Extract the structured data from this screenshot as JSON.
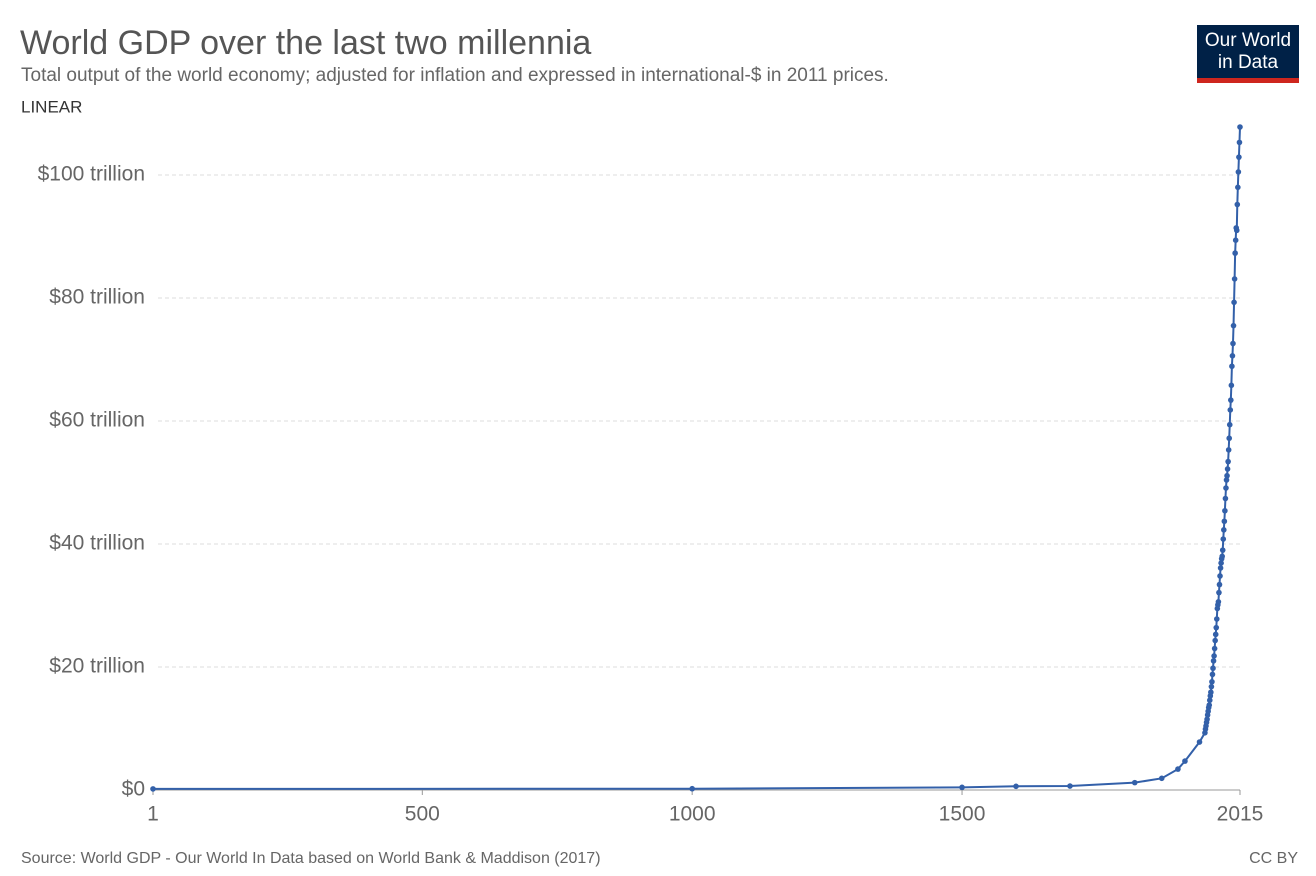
{
  "chart_data": {
    "type": "line",
    "title": "World GDP over the last two millennia",
    "subtitle": "Total output of the world economy; adjusted for inflation and expressed in international-$ in 2011 prices.",
    "scale_label": "LINEAR",
    "logo": [
      "Our World",
      "in Data"
    ],
    "source": "Source: World GDP - Our World In Data based on World Bank & Maddison (2017)",
    "license": "CC BY",
    "x": [
      1,
      1000,
      1500,
      1600,
      1700,
      1820,
      1870,
      1900,
      1913,
      1940,
      1950,
      1951,
      1952,
      1953,
      1954,
      1955,
      1956,
      1957,
      1958,
      1959,
      1960,
      1961,
      1962,
      1963,
      1964,
      1965,
      1966,
      1967,
      1968,
      1969,
      1970,
      1971,
      1972,
      1973,
      1974,
      1975,
      1976,
      1977,
      1978,
      1979,
      1980,
      1981,
      1982,
      1983,
      1984,
      1985,
      1986,
      1987,
      1988,
      1989,
      1990,
      1991,
      1992,
      1993,
      1994,
      1995,
      1996,
      1997,
      1998,
      1999,
      2000,
      2001,
      2002,
      2003,
      2004,
      2005,
      2006,
      2007,
      2008,
      2009,
      2010,
      2011,
      2012,
      2013,
      2014,
      2015
    ],
    "series": [
      {
        "name": "World",
        "color": "#3360a9",
        "values": [
          0.18,
          0.21,
          0.43,
          0.6,
          0.64,
          1.2,
          1.9,
          3.4,
          4.7,
          7.8,
          9.3,
          9.9,
          10.4,
          11.0,
          11.5,
          12.2,
          12.8,
          13.4,
          13.8,
          14.6,
          15.3,
          15.9,
          16.8,
          17.6,
          18.8,
          19.8,
          21.0,
          21.8,
          23.0,
          24.3,
          25.3,
          26.4,
          27.8,
          29.5,
          30.1,
          30.6,
          32.1,
          33.4,
          34.8,
          36.1,
          36.9,
          37.6,
          38.0,
          39.0,
          40.8,
          42.3,
          43.7,
          45.4,
          47.4,
          49.1,
          50.4,
          51.1,
          52.2,
          53.4,
          55.3,
          57.2,
          59.4,
          61.8,
          63.4,
          65.8,
          68.9,
          70.6,
          72.6,
          75.5,
          79.3,
          83.1,
          87.3,
          89.4,
          91.4,
          91.0,
          95.2,
          98.0,
          100.5,
          102.9,
          105.3,
          107.8
        ]
      }
    ],
    "xlim": [
      1,
      2015
    ],
    "xticks": [
      1,
      500,
      1000,
      1500,
      2015
    ],
    "ylim": [
      0,
      108
    ],
    "yticks": [
      {
        "value": 0,
        "label": "$0"
      },
      {
        "value": 20,
        "label": "$20 trillion"
      },
      {
        "value": 40,
        "label": "$40 trillion"
      },
      {
        "value": 60,
        "label": "$60 trillion"
      },
      {
        "value": 80,
        "label": "$80 trillion"
      },
      {
        "value": 100,
        "label": "$100 trillion"
      }
    ],
    "grid": true
  }
}
